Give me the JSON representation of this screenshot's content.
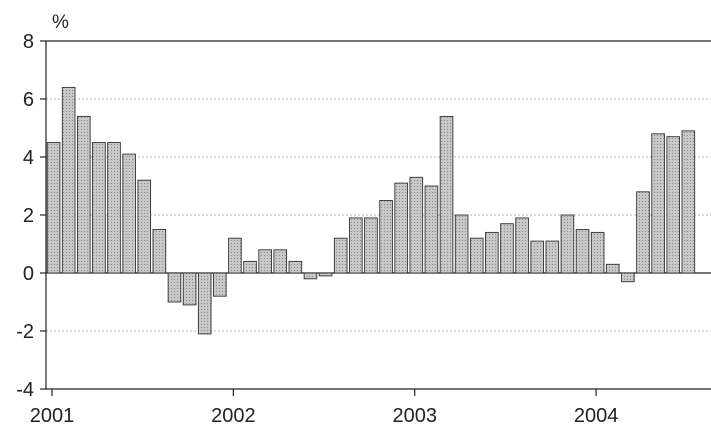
{
  "chart_data": {
    "type": "bar",
    "unit": "%",
    "ylim": [
      -4,
      8
    ],
    "y_ticks": [
      8,
      6,
      4,
      2,
      0,
      -2,
      -4
    ],
    "x_ticks": [
      "2001",
      "2002",
      "2003",
      "2004"
    ],
    "grid": true,
    "legend": "none",
    "bar_color": "#c8c8c8",
    "bar_edge_color": "#333333",
    "categories": [
      "2001-01",
      "2001-02",
      "2001-03",
      "2001-04",
      "2001-05",
      "2001-06",
      "2001-07",
      "2001-08",
      "2001-09",
      "2001-10",
      "2001-11",
      "2001-12",
      "2002-01",
      "2002-02",
      "2002-03",
      "2002-04",
      "2002-05",
      "2002-06",
      "2002-07",
      "2002-08",
      "2002-09",
      "2002-10",
      "2002-11",
      "2002-12",
      "2003-01",
      "2003-02",
      "2003-03",
      "2003-04",
      "2003-05",
      "2003-06",
      "2003-07",
      "2003-08",
      "2003-09",
      "2003-10",
      "2003-11",
      "2003-12",
      "2004-01",
      "2004-02",
      "2004-03",
      "2004-04",
      "2004-05",
      "2004-06",
      "2004-07",
      "2004-08"
    ],
    "values": [
      4.5,
      6.4,
      5.4,
      4.5,
      4.5,
      4.1,
      3.2,
      1.5,
      -1.0,
      -1.1,
      -2.1,
      -0.8,
      1.2,
      0.4,
      0.8,
      0.8,
      0.4,
      -0.2,
      -0.1,
      1.2,
      1.9,
      1.9,
      2.5,
      3.1,
      3.3,
      3.0,
      5.4,
      2.0,
      1.2,
      1.4,
      1.7,
      1.9,
      1.1,
      1.1,
      2.0,
      1.5,
      1.4,
      0.3,
      -0.3,
      2.8,
      4.8,
      4.7,
      4.9,
      0.0
    ]
  }
}
